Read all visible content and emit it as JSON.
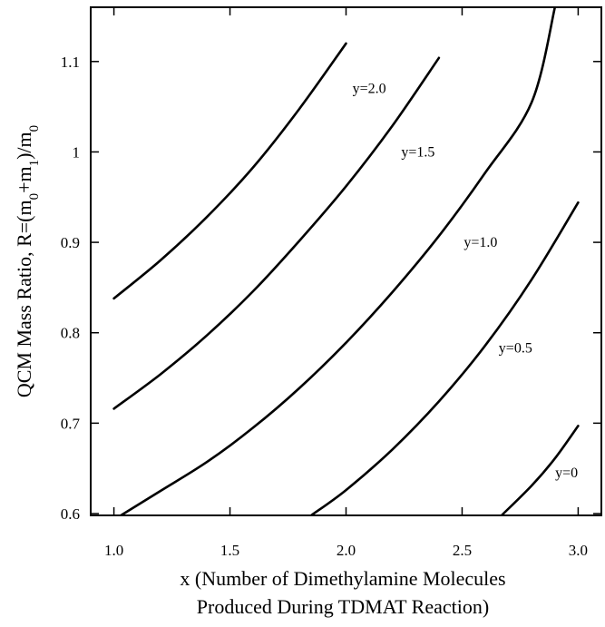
{
  "chart_data": {
    "type": "line",
    "xlabel_line1": "x (Number of Dimethylamine Molecules",
    "xlabel_line2": "Produced During TDMAT Reaction)",
    "ylabel": "QCM Mass Ratio, R=(m0+m1)/m0",
    "xlim": [
      0.9,
      3.1
    ],
    "ylim": [
      0.598,
      1.16
    ],
    "x_ticks": [
      1.0,
      1.5,
      2.0,
      2.5,
      3.0
    ],
    "x_tick_labels": [
      "1.0",
      "1.5",
      "2.0",
      "2.5",
      "3.0"
    ],
    "y_ticks": [
      0.6,
      0.7,
      0.8,
      0.9,
      1.0,
      1.1
    ],
    "y_tick_labels": [
      "0.6",
      "0.7",
      "0.8",
      "0.9",
      "1",
      "1.1"
    ],
    "grid": false,
    "legend": "none",
    "series": [
      {
        "name": "y=2.0",
        "x": [
          1.0,
          1.2,
          1.4,
          1.6,
          1.8,
          2.0
        ],
        "y": [
          0.838,
          0.88,
          0.928,
          0.983,
          1.048,
          1.12
        ]
      },
      {
        "name": "y=1.5",
        "x": [
          1.0,
          1.2,
          1.4,
          1.6,
          1.8,
          2.0,
          2.2,
          2.4
        ],
        "y": [
          0.716,
          0.754,
          0.797,
          0.846,
          0.902,
          0.962,
          1.029,
          1.104
        ]
      },
      {
        "name": "y=1.0",
        "x": [
          1.03,
          1.2,
          1.4,
          1.6,
          1.8,
          2.0,
          2.2,
          2.4,
          2.6,
          2.8,
          2.9
        ],
        "y": [
          0.598,
          0.625,
          0.657,
          0.695,
          0.739,
          0.789,
          0.845,
          0.907,
          0.977,
          1.055,
          1.16
        ]
      },
      {
        "name": "y=0.5",
        "x": [
          1.85,
          2.0,
          2.2,
          2.4,
          2.6,
          2.8,
          3.0
        ],
        "y": [
          0.598,
          0.626,
          0.671,
          0.724,
          0.786,
          0.859,
          0.944
        ]
      },
      {
        "name": "y=0",
        "x": [
          2.67,
          2.8,
          2.9,
          3.0
        ],
        "y": [
          0.598,
          0.631,
          0.661,
          0.697
        ]
      }
    ],
    "annotations": [
      {
        "text": "y=2.0",
        "x": 2.1,
        "y": 1.065
      },
      {
        "text": "y=1.5",
        "x": 2.31,
        "y": 0.995
      },
      {
        "text": "y=1.0",
        "x": 2.58,
        "y": 0.895
      },
      {
        "text": "y=0.5",
        "x": 2.73,
        "y": 0.778
      },
      {
        "text": "y=0",
        "x": 2.95,
        "y": 0.64
      }
    ]
  }
}
